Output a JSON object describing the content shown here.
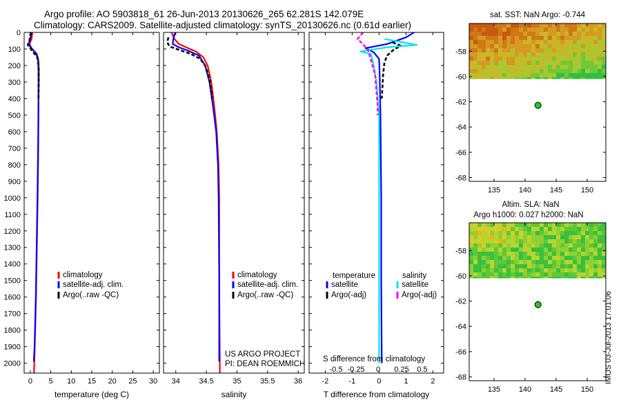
{
  "header": {
    "line1": "Argo profile: AO 5903818_61 26-Jun-2013 20130626_265 62.281S 142.079E",
    "line2": "Climatology: CARS2009. Satellite-adjusted climatology: synTS_20130626.nc (0.61d earlier)"
  },
  "watermark": "IMOS 03-Jul-2013 17:01:06",
  "depth_axis": {
    "ticks": [
      0,
      100,
      200,
      300,
      400,
      500,
      600,
      700,
      800,
      900,
      1000,
      1100,
      1200,
      1300,
      1400,
      1500,
      1600,
      1700,
      1800,
      1900,
      2000
    ],
    "ylim": [
      0,
      2060
    ]
  },
  "chart_data": [
    {
      "id": "temperature",
      "type": "line",
      "xlabel": "temperature (deg C)",
      "xlim": [
        -1.5,
        31.5
      ],
      "xticks": [
        0,
        5,
        10,
        15,
        20,
        25,
        30
      ],
      "legend": [
        "climatology",
        "satellite-adj. clim.",
        "Argo(..raw -QC)"
      ],
      "series": [
        {
          "name": "climatology",
          "color": "#ff0000",
          "points": [
            [
              0.5,
              0
            ],
            [
              0.3,
              40
            ],
            [
              -0.2,
              70
            ],
            [
              0.3,
              95
            ],
            [
              1.6,
              130
            ],
            [
              2.0,
              170
            ],
            [
              2.1,
              230
            ],
            [
              2.0,
              400
            ],
            [
              1.95,
              700
            ],
            [
              1.8,
              1000
            ],
            [
              1.6,
              1300
            ],
            [
              1.4,
              1600
            ],
            [
              1.1,
              1900
            ],
            [
              0.9,
              2060
            ]
          ]
        },
        {
          "name": "satellite-adj. clim.",
          "color": "#0000ff",
          "points": [
            [
              0.3,
              0
            ],
            [
              0.0,
              40
            ],
            [
              -0.4,
              70
            ],
            [
              0.2,
              95
            ],
            [
              1.4,
              125
            ],
            [
              1.9,
              165
            ],
            [
              2.0,
              230
            ],
            [
              2.0,
              400
            ],
            [
              1.9,
              700
            ],
            [
              1.75,
              1000
            ],
            [
              1.55,
              1300
            ],
            [
              1.35,
              1600
            ],
            [
              1.05,
              1900
            ],
            [
              0.85,
              1990
            ]
          ]
        },
        {
          "name": "Argo(..raw -QC)",
          "color": "#000000",
          "dashed": true,
          "points": [
            [
              0.1,
              0
            ],
            [
              -0.2,
              50
            ],
            [
              -0.6,
              75
            ],
            [
              0.4,
              110
            ],
            [
              1.7,
              150
            ],
            [
              2.0,
              200
            ],
            [
              2.05,
              300
            ],
            [
              2.0,
              400
            ]
          ]
        }
      ]
    },
    {
      "id": "salinity",
      "type": "line",
      "xlabel": "salinity",
      "xlim": [
        33.8,
        36.1
      ],
      "xticks": [
        34,
        34.5,
        35,
        35.5,
        36
      ],
      "legend": [
        "climatology",
        "satellite-adj. clim.",
        "Argo(..raw -QC)"
      ],
      "project": "US ARGO PROJECT",
      "pi": "PI: DEAN ROEMMICH",
      "series": [
        {
          "name": "climatology",
          "color": "#ff0000",
          "points": [
            [
              33.93,
              0
            ],
            [
              33.98,
              40
            ],
            [
              34.05,
              70
            ],
            [
              34.2,
              95
            ],
            [
              34.33,
              115
            ],
            [
              34.45,
              150
            ],
            [
              34.52,
              200
            ],
            [
              34.58,
              300
            ],
            [
              34.63,
              450
            ],
            [
              34.67,
              600
            ],
            [
              34.7,
              800
            ],
            [
              34.71,
              1000
            ],
            [
              34.71,
              1500
            ],
            [
              34.72,
              2000
            ],
            [
              34.72,
              2060
            ]
          ]
        },
        {
          "name": "satellite-adj. clim.",
          "color": "#0000ff",
          "points": [
            [
              33.99,
              0
            ],
            [
              33.96,
              40
            ],
            [
              33.95,
              70
            ],
            [
              34.05,
              90
            ],
            [
              34.2,
              110
            ],
            [
              34.38,
              140
            ],
            [
              34.48,
              200
            ],
            [
              34.55,
              300
            ],
            [
              34.61,
              450
            ],
            [
              34.66,
              600
            ],
            [
              34.69,
              800
            ],
            [
              34.7,
              1000
            ],
            [
              34.71,
              1500
            ],
            [
              34.71,
              1990
            ]
          ]
        },
        {
          "name": "Argo(..raw -QC)",
          "color": "#000000",
          "dashed": true,
          "points": [
            [
              33.88,
              30
            ],
            [
              33.86,
              60
            ],
            [
              33.9,
              85
            ],
            [
              34.05,
              105
            ],
            [
              34.25,
              130
            ],
            [
              34.4,
              160
            ],
            [
              34.48,
              200
            ],
            [
              34.55,
              280
            ],
            [
              34.6,
              400
            ]
          ]
        }
      ]
    },
    {
      "id": "difference",
      "type": "line",
      "xlabel": "T difference from climatology",
      "xlabel_top": "S difference from climatology",
      "xlim": [
        -2.6,
        2.4
      ],
      "xticks": [
        -2,
        -1,
        0,
        1,
        2
      ],
      "xticks_top": [
        "-0.5",
        "-0.25",
        "0",
        "0.25",
        "0.5"
      ],
      "legend": {
        "temperature": {
          "title": "temperature",
          "items": [
            "satellite",
            "Argo(-adj)"
          ]
        },
        "salinity": {
          "title": "salinity",
          "items": [
            "satellite",
            "Argo(-adj)"
          ]
        }
      },
      "series": [
        {
          "name": "temperature satellite",
          "color": "#0000ff",
          "points": [
            [
              1.3,
              0
            ],
            [
              1.0,
              30
            ],
            [
              0.3,
              70
            ],
            [
              -0.5,
              95
            ],
            [
              -0.2,
              120
            ],
            [
              0.0,
              160
            ],
            [
              0.02,
              250
            ],
            [
              0.05,
              500
            ],
            [
              0.08,
              1000
            ],
            [
              0.08,
              1500
            ],
            [
              0.1,
              2000
            ]
          ]
        },
        {
          "name": "temperature Argo(-adj)",
          "color": "#000000",
          "dashed": true,
          "points": [
            [
              0.5,
              60
            ],
            [
              0.8,
              80
            ],
            [
              0.5,
              110
            ],
            [
              0.3,
              140
            ],
            [
              0.2,
              180
            ],
            [
              0.15,
              250
            ],
            [
              0.1,
              400
            ]
          ]
        },
        {
          "name": "salinity satellite",
          "color": "#00e5ee",
          "points": [
            [
              0.2,
              40
            ],
            [
              1.4,
              75
            ],
            [
              0.3,
              90
            ],
            [
              -0.7,
              115
            ],
            [
              -0.3,
              130
            ],
            [
              -0.2,
              200
            ],
            [
              -0.1,
              300
            ],
            [
              0.0,
              500
            ],
            [
              0.0,
              800
            ],
            [
              0.0,
              1200
            ],
            [
              0.0,
              2000
            ]
          ]
        },
        {
          "name": "salinity Argo(-adj)",
          "color": "#ff00ff",
          "dashed": true,
          "points": [
            [
              -0.6,
              0
            ],
            [
              -0.8,
              40
            ],
            [
              -0.6,
              70
            ],
            [
              -0.4,
              110
            ],
            [
              -0.3,
              170
            ],
            [
              -0.15,
              250
            ],
            [
              -0.05,
              450
            ],
            [
              -0.05,
              500
            ]
          ]
        }
      ]
    },
    {
      "id": "sst-map",
      "type": "heatmap",
      "title": "sat. SST: NaN Argo: -0.744",
      "xlim": [
        131,
        153
      ],
      "ylim": [
        -68.3,
        -55.8
      ],
      "xticks": [
        135,
        140,
        145,
        150
      ],
      "yticks": [
        -58,
        -60,
        -62,
        -64,
        -66,
        -68
      ],
      "data_bottom_lat": -60.2,
      "argo_position": [
        142.079,
        -62.281
      ]
    },
    {
      "id": "sla-map",
      "type": "heatmap",
      "title_line1": "Altim. SLA: NaN",
      "title_line2": "Argo h1000: 0.027 h2000: NaN",
      "xlim": [
        131,
        153
      ],
      "ylim": [
        -68.3,
        -55.8
      ],
      "xticks": [
        135,
        140,
        145,
        150
      ],
      "yticks": [
        -58,
        -60,
        -62,
        -64,
        -66,
        -68
      ],
      "data_bottom_lat": -60.2,
      "argo_position": [
        142.079,
        -62.281
      ]
    }
  ]
}
